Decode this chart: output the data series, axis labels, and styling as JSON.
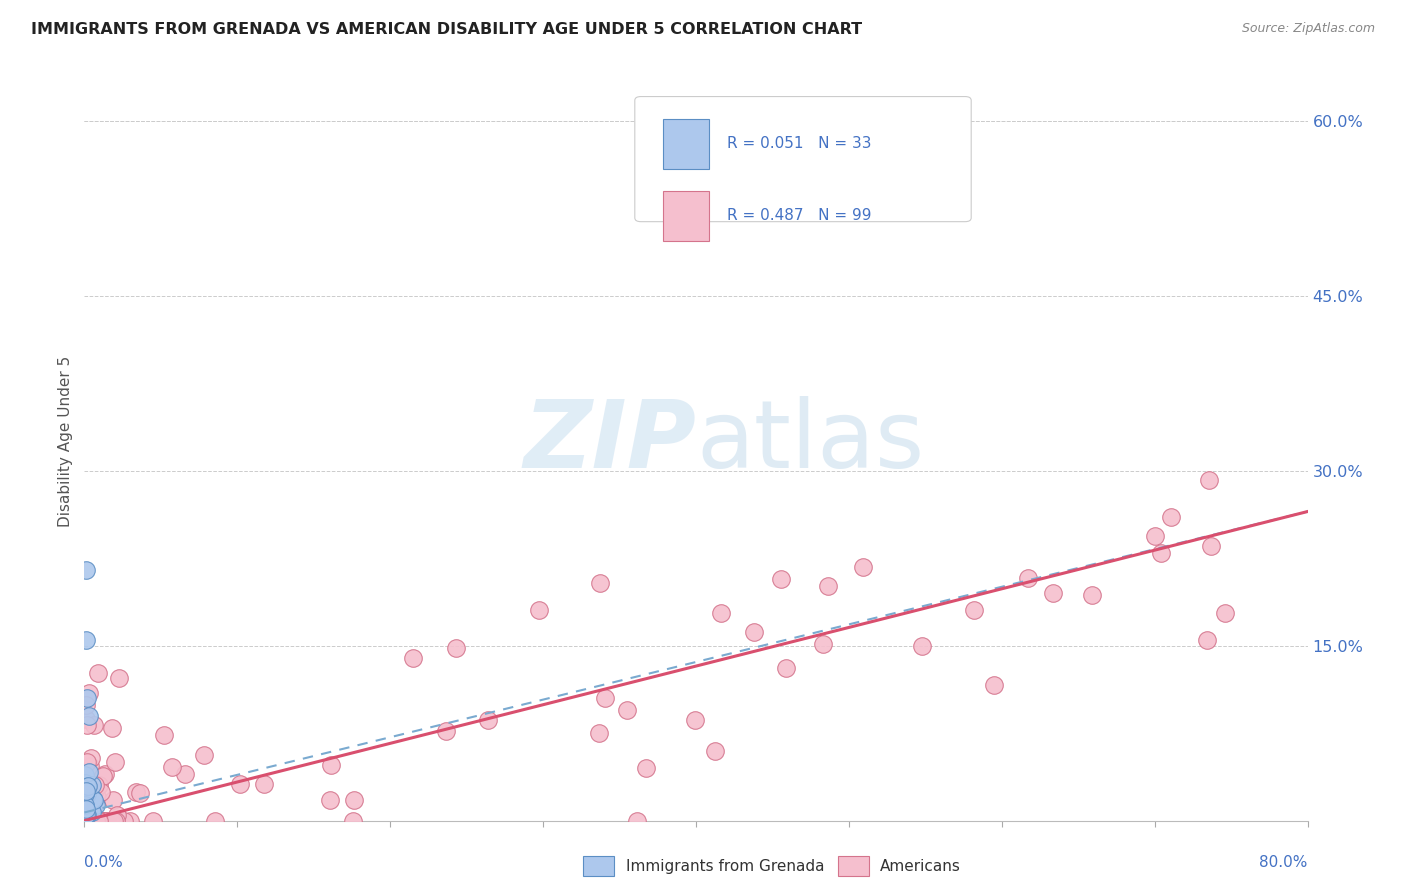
{
  "title": "IMMIGRANTS FROM GRENADA VS AMERICAN DISABILITY AGE UNDER 5 CORRELATION CHART",
  "source": "Source: ZipAtlas.com",
  "ylabel": "Disability Age Under 5",
  "ylabel_right_ticks": [
    "60.0%",
    "45.0%",
    "30.0%",
    "15.0%"
  ],
  "ylabel_right_vals": [
    0.6,
    0.45,
    0.3,
    0.15
  ],
  "legend_entry1": "R = 0.051   N = 33",
  "legend_entry2": "R = 0.487   N = 99",
  "legend_label1": "Immigrants from Grenada",
  "legend_label2": "Americans",
  "color_blue_fill": "#adc8ed",
  "color_blue_edge": "#5b8ec4",
  "color_pink_fill": "#f5bfce",
  "color_pink_edge": "#d4748c",
  "color_blue_text": "#4472c4",
  "line_blue": "#7aaad0",
  "line_pink": "#d94f6e",
  "background": "#ffffff",
  "xlim": [
    0.0,
    0.8
  ],
  "ylim": [
    0.0,
    0.65
  ],
  "blue_line_x0": 0.0,
  "blue_line_y0": 0.007,
  "blue_line_x1": 0.8,
  "blue_line_y1": 0.265,
  "pink_line_x0": 0.0,
  "pink_line_y0": 0.0,
  "pink_line_x1": 0.8,
  "pink_line_y1": 0.265
}
